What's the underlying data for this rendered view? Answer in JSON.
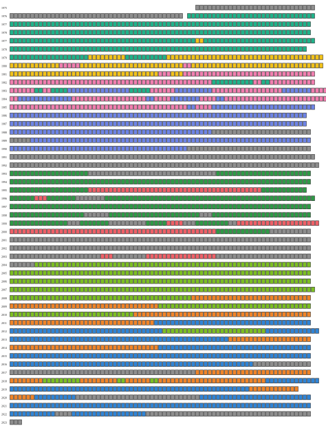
{
  "chart_data": {
    "type": "bar",
    "title": "",
    "xlabel": "",
    "ylabel": "",
    "xlim": [
      0,
      79
    ],
    "colors": {
      "G": "#8e8e8e",
      "T": "#1fb38a",
      "Y": "#f2c21a",
      "P": "#f27fb0",
      "B": "#6e84e6",
      "D": "#2e9a46",
      "R": "#f06068",
      "L": "#7cbf22",
      "O": "#f08428",
      "A": "#2f84d6"
    },
    "rows": [
      {
        "year": "1975",
        "segments": [
          [
            "G",
            45,
            73
          ]
        ]
      },
      {
        "year": "1976",
        "segments": [
          [
            "G",
            0,
            29
          ],
          [
            "G",
            30,
            41
          ],
          [
            "T",
            43,
            73
          ]
        ]
      },
      {
        "year": "1977",
        "segments": [
          [
            "T",
            0,
            72
          ]
        ]
      },
      {
        "year": "1978",
        "segments": [
          [
            "T",
            0,
            72
          ]
        ]
      },
      {
        "year": "1977",
        "segments": [
          [
            "T",
            0,
            44
          ],
          [
            "Y",
            45,
            46
          ],
          [
            "T",
            47,
            73
          ]
        ]
      },
      {
        "year": "1978",
        "segments": [
          [
            "T",
            0,
            71
          ]
        ]
      },
      {
        "year": "1979",
        "segments": [
          [
            "T",
            0,
            18
          ],
          [
            "Y",
            19,
            27
          ],
          [
            "T",
            28,
            37
          ],
          [
            "Y",
            38,
            75
          ]
        ]
      },
      {
        "year": "1980",
        "segments": [
          [
            "Y",
            0,
            11
          ],
          [
            "P",
            12,
            16
          ],
          [
            "Y",
            17,
            41
          ],
          [
            "P",
            42,
            43
          ],
          [
            "Y",
            44,
            75
          ]
        ]
      },
      {
        "year": "1981",
        "segments": [
          [
            "Y",
            0,
            35
          ],
          [
            "P",
            36,
            38
          ],
          [
            "Y",
            39,
            41
          ],
          [
            "P",
            42,
            73
          ]
        ]
      },
      {
        "year": "1982",
        "segments": [
          [
            "P",
            0,
            48
          ],
          [
            "T",
            49,
            58
          ],
          [
            "P",
            59,
            60
          ],
          [
            "T",
            61,
            62
          ],
          [
            "P",
            63,
            73
          ]
        ]
      },
      {
        "year": "1983",
        "segments": [
          [
            "P",
            0,
            5
          ],
          [
            "T",
            6,
            7
          ],
          [
            "P",
            8,
            9
          ],
          [
            "T",
            10,
            13
          ],
          [
            "B",
            14,
            28
          ],
          [
            "T",
            29,
            33
          ],
          [
            "P",
            34,
            39
          ],
          [
            "B",
            40,
            48
          ],
          [
            "P",
            49,
            65
          ],
          [
            "B",
            66,
            72
          ],
          [
            "P",
            73,
            78
          ]
        ]
      },
      {
        "year": "1984",
        "segments": [
          [
            "P",
            0,
            1
          ],
          [
            "B",
            2,
            14
          ],
          [
            "P",
            15,
            32
          ],
          [
            "B",
            33,
            34
          ],
          [
            "P",
            35,
            38
          ],
          [
            "B",
            39,
            45
          ],
          [
            "P",
            46,
            49
          ],
          [
            "B",
            50,
            51
          ],
          [
            "P",
            52,
            77
          ]
        ]
      },
      {
        "year": "1985",
        "segments": [
          [
            "P",
            0,
            42
          ],
          [
            "B",
            43,
            44
          ],
          [
            "P",
            45,
            48
          ],
          [
            "B",
            49,
            73
          ]
        ]
      },
      {
        "year": "1986",
        "segments": [
          [
            "B",
            0,
            71
          ]
        ]
      },
      {
        "year": "1987",
        "segments": [
          [
            "B",
            0,
            71
          ]
        ]
      },
      {
        "year": "1988",
        "segments": [
          [
            "B",
            0,
            48
          ],
          [
            "G",
            49,
            72
          ]
        ]
      },
      {
        "year": "1989",
        "segments": [
          [
            "G",
            0,
            4
          ],
          [
            "B",
            5,
            72
          ]
        ]
      },
      {
        "year": "1990",
        "segments": [
          [
            "B",
            0,
            42
          ],
          [
            "G",
            43,
            72
          ]
        ]
      },
      {
        "year": "1991",
        "segments": [
          [
            "G",
            0,
            3
          ],
          [
            "G",
            4,
            8
          ],
          [
            "G",
            9,
            36
          ],
          [
            "G",
            37,
            48
          ],
          [
            "G",
            49,
            73
          ]
        ]
      },
      {
        "year": "1992",
        "segments": [
          [
            "G",
            0,
            6
          ],
          [
            "G",
            7,
            15
          ],
          [
            "G",
            16,
            20
          ],
          [
            "G",
            21,
            50
          ],
          [
            "G",
            51,
            55
          ],
          [
            "G",
            56,
            61
          ],
          [
            "G",
            62,
            74
          ]
        ]
      },
      {
        "year": "1993",
        "segments": [
          [
            "D",
            0,
            18
          ],
          [
            "G",
            19,
            44
          ],
          [
            "G",
            45,
            49
          ],
          [
            "D",
            50,
            72
          ]
        ]
      },
      {
        "year": "1994",
        "segments": [
          [
            "D",
            0,
            72
          ]
        ]
      },
      {
        "year": "1995",
        "segments": [
          [
            "D",
            0,
            18
          ],
          [
            "R",
            19,
            60
          ],
          [
            "D",
            61,
            71
          ]
        ]
      },
      {
        "year": "1996",
        "segments": [
          [
            "D",
            0,
            5
          ],
          [
            "R",
            6,
            8
          ],
          [
            "D",
            9,
            10
          ],
          [
            "D",
            11,
            15
          ],
          [
            "G",
            16,
            22
          ],
          [
            "D",
            23,
            73
          ]
        ]
      },
      {
        "year": "1997",
        "segments": [
          [
            "D",
            0,
            72
          ]
        ]
      },
      {
        "year": "1998",
        "segments": [
          [
            "D",
            0,
            17
          ],
          [
            "G",
            18,
            23
          ],
          [
            "D",
            24,
            45
          ],
          [
            "G",
            46,
            48
          ],
          [
            "D",
            49,
            72
          ]
        ]
      },
      {
        "year": "1999",
        "segments": [
          [
            "D",
            0,
            13
          ],
          [
            "G",
            14,
            16
          ],
          [
            "D",
            17,
            23
          ],
          [
            "G",
            24,
            32
          ],
          [
            "D",
            33,
            37
          ],
          [
            "R",
            38,
            41
          ],
          [
            "G",
            42,
            44
          ],
          [
            "D",
            45,
            52
          ],
          [
            "G",
            53,
            54
          ],
          [
            "R",
            55,
            74
          ]
        ]
      },
      {
        "year": "2000",
        "segments": [
          [
            "R",
            0,
            49
          ],
          [
            "D",
            50,
            62
          ],
          [
            "G",
            63,
            66
          ],
          [
            "G",
            67,
            72
          ]
        ]
      },
      {
        "year": "2001",
        "segments": [
          [
            "G",
            0,
            4
          ],
          [
            "G",
            5,
            9
          ],
          [
            "G",
            10,
            19
          ],
          [
            "G",
            20,
            30
          ],
          [
            "G",
            31,
            47
          ],
          [
            "G",
            48,
            52
          ],
          [
            "G",
            53,
            65
          ],
          [
            "G",
            66,
            69
          ],
          [
            "G",
            70,
            72
          ]
        ]
      },
      {
        "year": "2002",
        "segments": [
          [
            "G",
            0,
            49
          ],
          [
            "G",
            50,
            72
          ]
        ]
      },
      {
        "year": "2003",
        "segments": [
          [
            "G",
            0,
            21
          ],
          [
            "R",
            22,
            24
          ],
          [
            "G",
            25,
            32
          ],
          [
            "R",
            33,
            49
          ],
          [
            "G",
            50,
            61
          ],
          [
            "G",
            62,
            72
          ]
        ]
      },
      {
        "year": "2004",
        "segments": [
          [
            "G",
            0,
            5
          ],
          [
            "L",
            6,
            72
          ]
        ]
      },
      {
        "year": "2005",
        "segments": [
          [
            "L",
            0,
            72
          ]
        ]
      },
      {
        "year": "2006",
        "segments": [
          [
            "L",
            0,
            72
          ]
        ]
      },
      {
        "year": "2007",
        "segments": [
          [
            "L",
            0,
            73
          ]
        ]
      },
      {
        "year": "2008",
        "segments": [
          [
            "L",
            0,
            43
          ],
          [
            "O",
            44,
            72
          ]
        ]
      },
      {
        "year": "2009",
        "segments": [
          [
            "O",
            0,
            35
          ],
          [
            "L",
            36,
            72
          ]
        ]
      },
      {
        "year": "2010",
        "segments": [
          [
            "L",
            0,
            29
          ],
          [
            "O",
            30,
            72
          ]
        ]
      },
      {
        "year": "2011",
        "segments": [
          [
            "O",
            0,
            34
          ],
          [
            "A",
            35,
            72
          ]
        ]
      },
      {
        "year": "2012",
        "segments": [
          [
            "A",
            0,
            36
          ],
          [
            "L",
            37,
            61
          ],
          [
            "A",
            62,
            74
          ]
        ]
      },
      {
        "year": "2013",
        "segments": [
          [
            "A",
            0,
            52
          ],
          [
            "O",
            53,
            72
          ]
        ]
      },
      {
        "year": "2014",
        "segments": [
          [
            "O",
            0,
            35
          ],
          [
            "A",
            36,
            72
          ]
        ]
      },
      {
        "year": "2015",
        "segments": [
          [
            "A",
            0,
            72
          ]
        ]
      },
      {
        "year": "2016",
        "segments": [
          [
            "A",
            0,
            58
          ],
          [
            "G",
            59,
            72
          ]
        ]
      },
      {
        "year": "2017",
        "segments": [
          [
            "G",
            0,
            44
          ],
          [
            "O",
            45,
            72
          ]
        ]
      },
      {
        "year": "2018",
        "segments": [
          [
            "O",
            0,
            7
          ],
          [
            "L",
            8,
            16
          ],
          [
            "O",
            17,
            25
          ],
          [
            "L",
            26,
            27
          ],
          [
            "O",
            28,
            33
          ],
          [
            "L",
            34,
            35
          ],
          [
            "O",
            36,
            61
          ],
          [
            "A",
            62,
            74
          ]
        ]
      },
      {
        "year": "2019",
        "segments": [
          [
            "A",
            0,
            57
          ],
          [
            "O",
            58,
            69
          ]
        ]
      },
      {
        "year": "2020",
        "segments": [
          [
            "O",
            0,
            5
          ],
          [
            "A",
            6,
            15
          ],
          [
            "G",
            16,
            45
          ],
          [
            "A",
            46,
            72
          ]
        ]
      },
      {
        "year": "2021",
        "segments": [
          [
            "A",
            0,
            72
          ]
        ]
      },
      {
        "year": "2022",
        "segments": [
          [
            "A",
            0,
            10
          ],
          [
            "G",
            11,
            14
          ],
          [
            "A",
            15,
            32
          ],
          [
            "G",
            33,
            49
          ],
          [
            "G",
            50,
            72
          ]
        ]
      },
      {
        "year": "2023",
        "segments": [
          [
            "G",
            0,
            2
          ]
        ]
      }
    ]
  }
}
